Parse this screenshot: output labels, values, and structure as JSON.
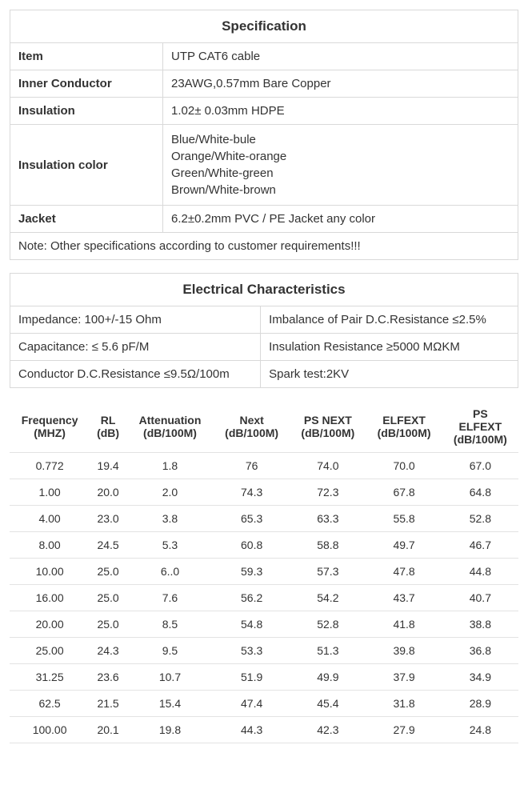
{
  "spec": {
    "title": "Specification",
    "rows": [
      {
        "label": "Item",
        "value": "UTP CAT6 cable"
      },
      {
        "label": "Inner Conductor",
        "value": "23AWG,0.57mm Bare Copper"
      },
      {
        "label": "Insulation",
        "value": "1.02± 0.03mm HDPE"
      }
    ],
    "insulation_color_label": "Insulation color",
    "insulation_colors": [
      "Blue/White-bule",
      "Orange/White-orange",
      "Green/White-green",
      "Brown/White-brown"
    ],
    "jacket_label": "Jacket",
    "jacket_value": "6.2±0.2mm PVC / PE Jacket  any color",
    "note": "Note: Other specifications according to customer requirements!!!"
  },
  "elec": {
    "title": "Electrical Characteristics",
    "rows": [
      [
        "Impedance: 100+/-15 Ohm",
        "Imbalance of Pair D.C.Resistance ≤2.5%"
      ],
      [
        "Capacitance: ≤ 5.6 pF/M",
        "Insulation Resistance ≥5000 MΩKM"
      ],
      [
        "Conductor D.C.Resistance ≤9.5Ω/100m",
        "Spark test:2KV"
      ]
    ]
  },
  "freq": {
    "columns": [
      [
        "Frequency",
        "(MHZ)"
      ],
      [
        "RL",
        "(dB)"
      ],
      [
        "Attenuation",
        "(dB/100M)"
      ],
      [
        "Next",
        "(dB/100M)"
      ],
      [
        "PS NEXT",
        "(dB/100M)"
      ],
      [
        "ELFEXT",
        "(dB/100M)"
      ],
      [
        "PS",
        "ELFEXT",
        "(dB/100M)"
      ]
    ],
    "rows": [
      [
        "0.772",
        "19.4",
        "1.8",
        "76",
        "74.0",
        "70.0",
        "67.0"
      ],
      [
        "1.00",
        "20.0",
        "2.0",
        "74.3",
        "72.3",
        "67.8",
        "64.8"
      ],
      [
        "4.00",
        "23.0",
        "3.8",
        "65.3",
        "63.3",
        "55.8",
        "52.8"
      ],
      [
        "8.00",
        "24.5",
        "5.3",
        "60.8",
        "58.8",
        "49.7",
        "46.7"
      ],
      [
        "10.00",
        "25.0",
        "6..0",
        "59.3",
        "57.3",
        "47.8",
        "44.8"
      ],
      [
        "16.00",
        "25.0",
        "7.6",
        "56.2",
        "54.2",
        "43.7",
        "40.7"
      ],
      [
        "20.00",
        "25.0",
        "8.5",
        "54.8",
        "52.8",
        "41.8",
        "38.8"
      ],
      [
        "25.00",
        "24.3",
        "9.5",
        "53.3",
        "51.3",
        "39.8",
        "36.8"
      ],
      [
        "31.25",
        "23.6",
        "10.7",
        "51.9",
        "49.9",
        "37.9",
        "34.9"
      ],
      [
        "62.5",
        "21.5",
        "15.4",
        "47.4",
        "45.4",
        "31.8",
        "28.9"
      ],
      [
        "100.00",
        "20.1",
        "19.8",
        "44.3",
        "42.3",
        "27.9",
        "24.8"
      ]
    ]
  }
}
